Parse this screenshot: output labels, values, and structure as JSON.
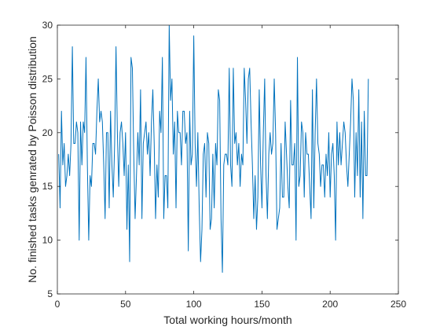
{
  "chart_data": {
    "type": "line",
    "title": "",
    "xlabel": "Total working hours/month",
    "ylabel": "No. finished tasks genrated by Poisson distribution",
    "xlim": [
      0,
      250
    ],
    "ylim": [
      5,
      30
    ],
    "xticks": [
      0,
      50,
      100,
      150,
      200,
      250
    ],
    "yticks": [
      5,
      10,
      15,
      20,
      25,
      30
    ],
    "grid": false,
    "legend": "none",
    "colors": {
      "line": "#0072BD",
      "axis": "#262626",
      "background": "#ffffff"
    },
    "series": [
      {
        "values": [
          18,
          13,
          22,
          17,
          19,
          15,
          16,
          18,
          16,
          19,
          28,
          19,
          19,
          21,
          20,
          10,
          21,
          17,
          21,
          20,
          27,
          17,
          10,
          16,
          15,
          19,
          19,
          18,
          22,
          25,
          21,
          22,
          21,
          17,
          12,
          20,
          20,
          13,
          22,
          17,
          14,
          19,
          28,
          20,
          15,
          20,
          21,
          19,
          16,
          20,
          11,
          17,
          8,
          27,
          26,
          18,
          12,
          16,
          20,
          17,
          24,
          12,
          19,
          20,
          21,
          18,
          20,
          16,
          21,
          24,
          19,
          12,
          17,
          14,
          22,
          20,
          27,
          12,
          16,
          16,
          13,
          30,
          23,
          25,
          18,
          21,
          13,
          22,
          20,
          20,
          17,
          22,
          22,
          19,
          20,
          9,
          22,
          17,
          18,
          29,
          19,
          15,
          20,
          13,
          8,
          11,
          18,
          19,
          14,
          20,
          19,
          11,
          12,
          18,
          13,
          19,
          17,
          24,
          23,
          12,
          7,
          17,
          18,
          18,
          17,
          26,
          17,
          15,
          26,
          19,
          20,
          17,
          19,
          15,
          18,
          17,
          26,
          23,
          19,
          25,
          26,
          21,
          17,
          12,
          16,
          11,
          14,
          24,
          17,
          13,
          20,
          25,
          16,
          12,
          18,
          20,
          18,
          19,
          25,
          20,
          11,
          12,
          13,
          19,
          14,
          14,
          21,
          18,
          15,
          13,
          23,
          17,
          17,
          19,
          10,
          27,
          15,
          16,
          21,
          20,
          14,
          20,
          18,
          18,
          15,
          12,
          24,
          13,
          20,
          25,
          19,
          18,
          15,
          17,
          17,
          14,
          18,
          16,
          20,
          14,
          18,
          19,
          16,
          10,
          21,
          17,
          20,
          17,
          19,
          21,
          20,
          17,
          15,
          18,
          21,
          25,
          23,
          14,
          20,
          16,
          24,
          14,
          21,
          12,
          22,
          16,
          16,
          25
        ]
      }
    ]
  }
}
